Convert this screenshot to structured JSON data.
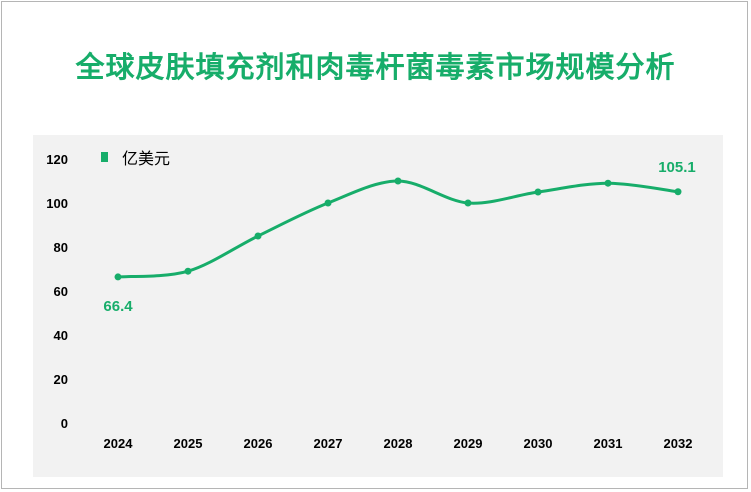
{
  "title": "全球皮肤填充剂和肉毒杆菌毒素市场规模分析",
  "colors": {
    "accent": "#17ad6a",
    "plot_bg": "#f2f2f2"
  },
  "chart_data": {
    "type": "line",
    "x": [
      "2024",
      "2025",
      "2026",
      "2027",
      "2028",
      "2029",
      "2030",
      "2031",
      "2032"
    ],
    "series": [
      {
        "name": "亿美元",
        "values": [
          66.4,
          69,
          85,
          100,
          110,
          100,
          105,
          109,
          105.1
        ]
      }
    ],
    "ylim": [
      0,
      120
    ],
    "yticks": [
      0,
      20,
      40,
      60,
      80,
      100,
      120
    ],
    "data_labels": [
      {
        "index": 0,
        "text": "66.4"
      },
      {
        "index": 8,
        "text": "105.1"
      }
    ],
    "legend_position": "top-left",
    "grid": false,
    "smooth": true
  }
}
